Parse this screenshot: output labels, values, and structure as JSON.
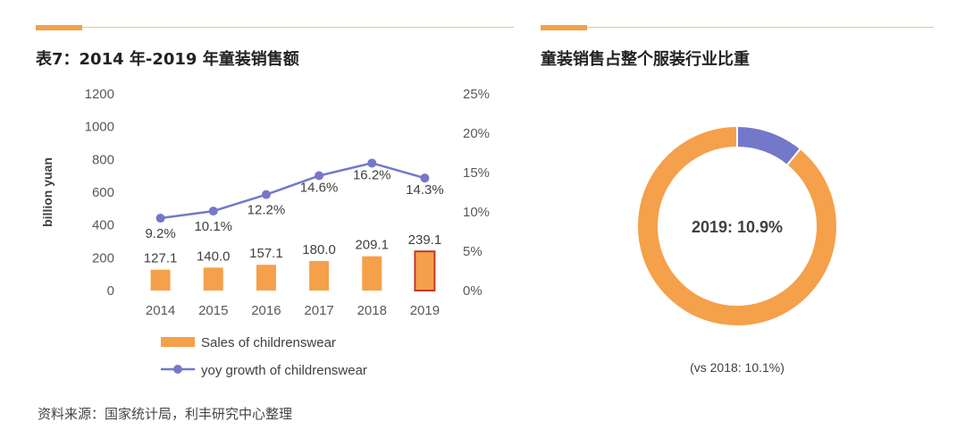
{
  "left": {
    "title": "表7：2014 年-2019 年童装销售额"
  },
  "right": {
    "title": "童装销售占整个服装行业比重"
  },
  "source_note": "资料来源：国家统计局，利丰研究中心整理",
  "colors": {
    "accent": "#f5a04a",
    "bar": "#f5a04a",
    "bar_highlight_border": "#c0392b",
    "line": "#7478c9",
    "donut_main": "#f5a04a",
    "donut_share": "#7478c9"
  },
  "chart_data": [
    {
      "type": "bar",
      "categories": [
        "2014",
        "2015",
        "2016",
        "2017",
        "2018",
        "2019"
      ],
      "series": [
        {
          "name": "Sales of childrenswear",
          "type": "bar",
          "axis": "left",
          "values": [
            127.1,
            140.0,
            157.1,
            180.0,
            209.1,
            239.1
          ],
          "labels": [
            "127.1",
            "140.0",
            "157.1",
            "180.0",
            "209.1",
            "239.1"
          ]
        },
        {
          "name": "yoy growth of childrenswear",
          "type": "line",
          "axis": "right",
          "values": [
            9.2,
            10.1,
            12.2,
            14.6,
            16.2,
            14.3
          ],
          "labels": [
            "9.2%",
            "10.1%",
            "12.2%",
            "14.6%",
            "16.2%",
            "14.3%"
          ]
        }
      ],
      "ylabel": "billion yuan",
      "ylim": [
        0,
        1200
      ],
      "yticks": [
        "0",
        "200",
        "400",
        "600",
        "800",
        "1000",
        "1200"
      ],
      "y2lim": [
        0,
        25
      ],
      "y2ticks": [
        "0%",
        "5%",
        "10%",
        "15%",
        "20%",
        "25%"
      ],
      "highlight_category": "2019",
      "legend_position": "bottom"
    },
    {
      "type": "pie",
      "variant": "donut",
      "values": [
        10.9,
        89.1
      ],
      "center_label": "2019: 10.9%",
      "note": "(vs 2018: 10.1%)"
    }
  ]
}
